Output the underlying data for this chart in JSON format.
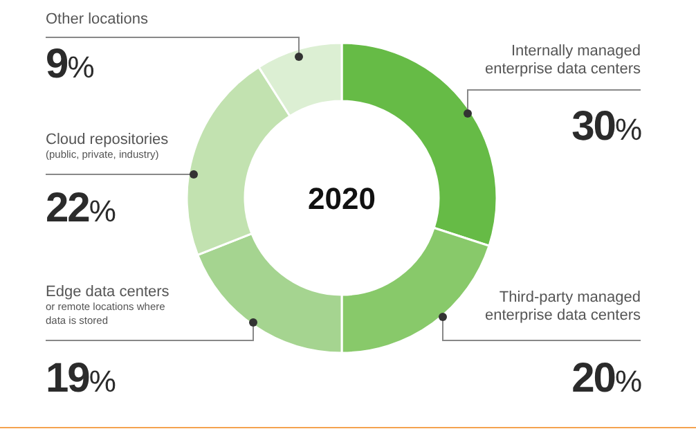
{
  "chart_data": {
    "type": "donut",
    "title": "2020",
    "categories": [
      "Internally managed\nenterprise data centers",
      "Third-party managed\nenterprise data centers",
      "Edge data centers\nor remote locations where\ndata is stored",
      "Cloud repositories\n(public, private, industry)",
      "Other locations"
    ],
    "values": [
      30,
      20,
      19,
      22,
      9
    ],
    "colors": [
      "#66bb46",
      "#88c96a",
      "#a5d490",
      "#c2e2b0",
      "#dcefd3"
    ],
    "value_labels": [
      "30%",
      "20%",
      "19%",
      "22%",
      "9%"
    ]
  }
}
